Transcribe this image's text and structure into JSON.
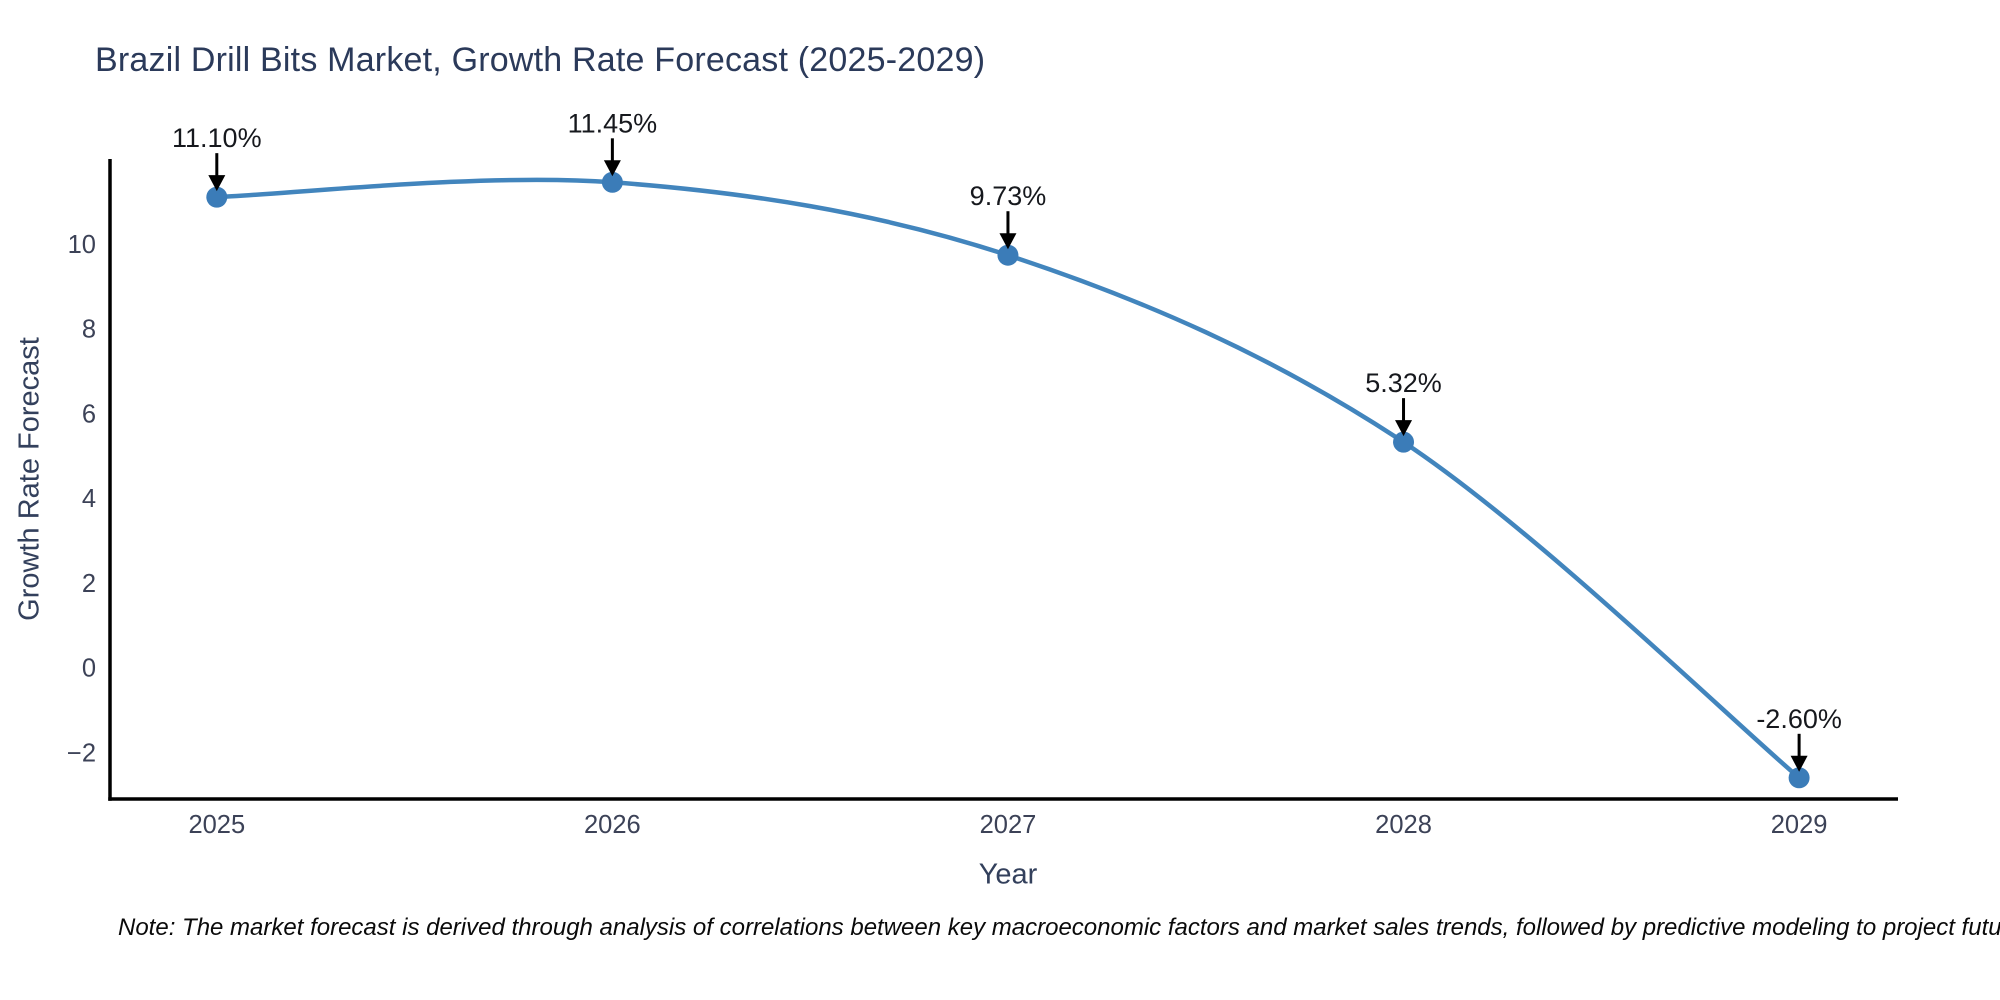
{
  "note": "Note: The market forecast is derived through analysis of correlations between key macroeconomic factors and market sales trends, followed by predictive modeling to project future sales",
  "chart_data": {
    "type": "line",
    "title": "Brazil Drill Bits Market, Growth Rate Forecast (2025-2029)",
    "xlabel": "Year",
    "ylabel": "Growth Rate Forecast",
    "categories": [
      2025,
      2026,
      2027,
      2028,
      2029
    ],
    "values": [
      11.1,
      11.45,
      9.73,
      5.32,
      -2.6
    ],
    "point_labels": [
      "11.10%",
      "11.45%",
      "9.73%",
      "5.32%",
      "-2.60%"
    ],
    "x_tick_labels": [
      "2025",
      "2026",
      "2027",
      "2028",
      "2029"
    ],
    "y_ticks": [
      10,
      8,
      6,
      4,
      2,
      0,
      -2
    ],
    "y_tick_labels": [
      "10",
      "8",
      "6",
      "4",
      "2",
      "0",
      "−2"
    ],
    "xlim": [
      2024.73,
      2029.25
    ],
    "ylim": [
      -3.1,
      12.0
    ],
    "line_shape": "spline",
    "grid": false,
    "legend": "none",
    "colors": {
      "line": "#4285bd",
      "marker": "#3b7cb8",
      "arrow": "#000000",
      "axis_line": "#000000",
      "title_text": "#2b3a5a",
      "axis_title_text": "#33405c",
      "tick_text": "#3c4257",
      "annotation_text": "#16181d",
      "note_text": "#0a0a0a",
      "background": "#ffffff"
    }
  }
}
